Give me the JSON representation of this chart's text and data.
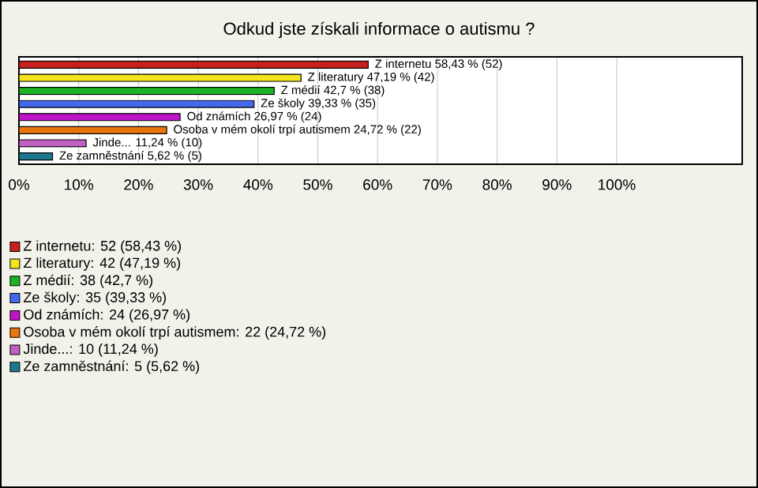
{
  "chart_data": {
    "type": "bar",
    "orientation": "horizontal",
    "stacked": true,
    "title": "Odkud jste získali informace o autismu ?",
    "categories": [
      null,
      null,
      null,
      null,
      null,
      null,
      null,
      null
    ],
    "series": [
      {
        "name": "Z internetu: 52 (58,43 %)",
        "color": "#c8201c",
        "values": [
          58.43,
          null,
          null,
          null,
          null,
          null,
          null,
          null
        ],
        "value_labels": [
          "Z internetu 58,43 % (52)",
          null,
          null,
          null,
          null,
          null,
          null,
          null
        ]
      },
      {
        "name": "Z literatury: 42 (47,19 %)",
        "color": "#f4e41c",
        "values": [
          null,
          47.19,
          null,
          null,
          null,
          null,
          null,
          null
        ],
        "value_labels": [
          null,
          "Z literatury 47,19 % (42)",
          null,
          null,
          null,
          null,
          null,
          null
        ]
      },
      {
        "name": "Z médií: 38 (42,7 %)",
        "color": "#1cb424",
        "values": [
          null,
          null,
          42.7,
          null,
          null,
          null,
          null,
          null
        ],
        "value_labels": [
          null,
          null,
          "Z médií 42,7 % (38)",
          null,
          null,
          null,
          null,
          null
        ]
      },
      {
        "name": "Ze školy: 35 (39,33 %)",
        "color": "#4468ec",
        "values": [
          null,
          null,
          null,
          39.33,
          null,
          null,
          null,
          null
        ],
        "value_labels": [
          null,
          null,
          null,
          "Ze školy 39,33 % (35)",
          null,
          null,
          null,
          null
        ]
      },
      {
        "name": "Od známích: 24 (26,97 %)",
        "color": "#c014c8",
        "values": [
          null,
          null,
          null,
          null,
          26.97,
          null,
          null,
          null
        ],
        "value_labels": [
          null,
          null,
          null,
          null,
          "Od známích 26,97 % (24)",
          null,
          null,
          null
        ]
      },
      {
        "name": "Osoba v mém okolí trpí autismem: 22 (24,72 %)",
        "color": "#e8760c",
        "values": [
          null,
          null,
          null,
          null,
          null,
          24.72,
          null,
          null
        ],
        "value_labels": [
          null,
          null,
          null,
          null,
          null,
          "Osoba v mém okolí trpí autismem 24,72 % (22)",
          null,
          null
        ]
      },
      {
        "name": "Jinde...: 10 (11,24 %)",
        "color": "#c060c0",
        "values": [
          null,
          null,
          null,
          null,
          null,
          null,
          11.24,
          null
        ],
        "value_labels": [
          null,
          null,
          null,
          null,
          null,
          null,
          "Jinde... 11,24 % (10)",
          null
        ]
      },
      {
        "name": "Ze zamněstnání: 5 (5,62 %)",
        "color": "#1c7890",
        "values": [
          null,
          null,
          null,
          null,
          null,
          null,
          null,
          5.62
        ],
        "value_labels": [
          null,
          null,
          null,
          null,
          null,
          null,
          null,
          "Ze zamněstnání 5,62 % (5)"
        ]
      }
    ],
    "xlim": [
      0,
      121
    ],
    "xticks": [
      {
        "value": 0,
        "label": "0%"
      },
      {
        "value": 10,
        "label": "10%"
      },
      {
        "value": 20,
        "label": "20%"
      },
      {
        "value": 30,
        "label": "30%"
      },
      {
        "value": 40,
        "label": "40%"
      },
      {
        "value": 50,
        "label": "50%"
      },
      {
        "value": 60,
        "label": "60%"
      },
      {
        "value": 70,
        "label": "70%"
      },
      {
        "value": 80,
        "label": "80%"
      },
      {
        "value": 90,
        "label": "90%"
      },
      {
        "value": 100,
        "label": "100%"
      }
    ],
    "grid": "x",
    "legend": "bottom",
    "tick_labels": "x"
  }
}
